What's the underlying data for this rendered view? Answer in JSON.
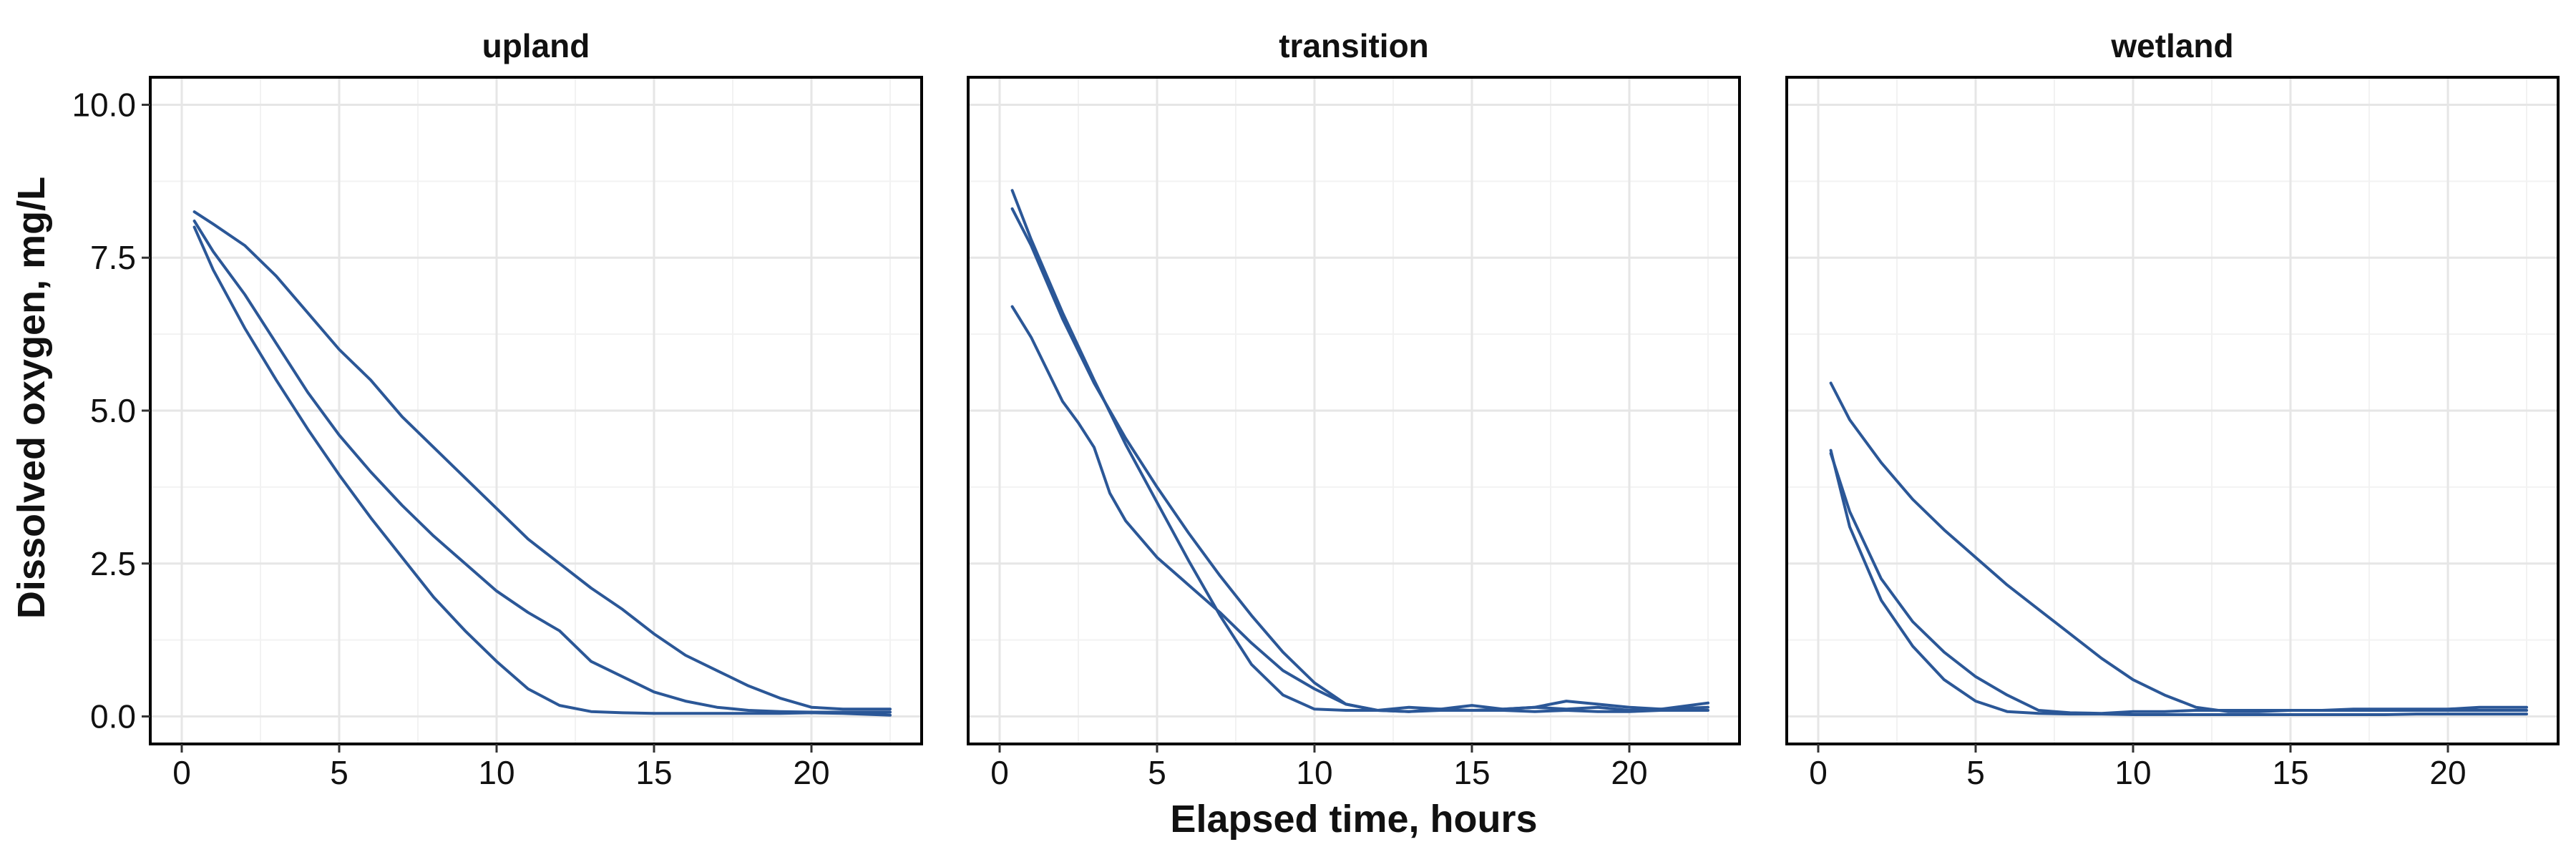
{
  "chart_data": {
    "type": "line",
    "xlabel": "Elapsed time, hours",
    "ylabel": "Dissolved oxygen, mg/L",
    "xlim": [
      -1,
      23.5
    ],
    "ylim": [
      -0.45,
      10.45
    ],
    "x_ticks": [
      0,
      5,
      10,
      15,
      20
    ],
    "x_tick_labels": [
      "0",
      "5",
      "10",
      "15",
      "20"
    ],
    "y_ticks": [
      0,
      2.5,
      5,
      7.5,
      10
    ],
    "y_tick_labels": [
      "0.0",
      "2.5",
      "5.0",
      "7.5",
      "10.0"
    ],
    "grid": true,
    "line_color": "#2b5797",
    "panels": [
      {
        "title": "upland",
        "series": [
          {
            "x": [
              0.4,
              1,
              2,
              3,
              4,
              5,
              6,
              7,
              8,
              9,
              10,
              11,
              12,
              13,
              14,
              15,
              16,
              17,
              18,
              19,
              20,
              21,
              22.5
            ],
            "y": [
              8.25,
              8.05,
              7.7,
              7.2,
              6.6,
              6.0,
              5.5,
              4.9,
              4.4,
              3.9,
              3.4,
              2.9,
              2.5,
              2.1,
              1.75,
              1.35,
              1.0,
              0.75,
              0.5,
              0.3,
              0.15,
              0.12,
              0.12
            ]
          },
          {
            "x": [
              0.4,
              1,
              2,
              3,
              4,
              5,
              6,
              7,
              8,
              9,
              10,
              11,
              12,
              13,
              14,
              15,
              16,
              17,
              18,
              19,
              20,
              21,
              22.5
            ],
            "y": [
              8.1,
              7.6,
              6.9,
              6.1,
              5.3,
              4.6,
              4.0,
              3.45,
              2.95,
              2.5,
              2.05,
              1.7,
              1.4,
              0.9,
              0.65,
              0.4,
              0.25,
              0.15,
              0.1,
              0.08,
              0.07,
              0.07,
              0.07
            ]
          },
          {
            "x": [
              0.4,
              1,
              2,
              3,
              4,
              5,
              6,
              7,
              8,
              9,
              10,
              11,
              12,
              13,
              14,
              15,
              16,
              17,
              18,
              19,
              20,
              21,
              22.5
            ],
            "y": [
              8.0,
              7.3,
              6.35,
              5.5,
              4.7,
              3.95,
              3.25,
              2.6,
              1.95,
              1.4,
              0.9,
              0.45,
              0.18,
              0.08,
              0.06,
              0.05,
              0.05,
              0.05,
              0.05,
              0.05,
              0.06,
              0.05,
              0.02
            ]
          }
        ]
      },
      {
        "title": "transition",
        "series": [
          {
            "x": [
              0.4,
              1,
              2,
              3,
              4,
              5,
              6,
              7,
              8,
              9,
              10,
              11,
              12,
              13,
              14,
              15,
              16,
              17,
              18,
              19,
              20,
              21,
              22.5
            ],
            "y": [
              8.6,
              7.8,
              6.6,
              5.5,
              4.45,
              3.5,
              2.55,
              1.65,
              0.85,
              0.35,
              0.12,
              0.1,
              0.1,
              0.15,
              0.12,
              0.18,
              0.12,
              0.15,
              0.12,
              0.15,
              0.1,
              0.12,
              0.22
            ]
          },
          {
            "x": [
              0.4,
              1,
              2,
              3,
              4,
              5,
              6,
              7,
              8,
              9,
              10,
              11,
              12,
              13,
              14,
              15,
              16,
              17,
              18,
              19,
              20,
              21,
              22.5
            ],
            "y": [
              8.3,
              7.7,
              6.5,
              5.45,
              4.55,
              3.75,
              3.0,
              2.3,
              1.65,
              1.05,
              0.55,
              0.2,
              0.1,
              0.08,
              0.12,
              0.1,
              0.12,
              0.15,
              0.25,
              0.2,
              0.15,
              0.12,
              0.15
            ]
          },
          {
            "x": [
              0.4,
              1,
              2,
              2.5,
              3,
              3.5,
              4,
              5,
              6,
              7,
              8,
              9,
              10,
              11,
              12,
              13,
              14,
              15,
              16,
              17,
              18,
              19,
              20,
              21,
              22.5
            ],
            "y": [
              6.7,
              6.2,
              5.15,
              4.8,
              4.4,
              3.65,
              3.2,
              2.6,
              2.15,
              1.7,
              1.2,
              0.75,
              0.45,
              0.2,
              0.1,
              0.08,
              0.1,
              0.1,
              0.1,
              0.08,
              0.1,
              0.08,
              0.08,
              0.1,
              0.1
            ]
          }
        ]
      },
      {
        "title": "wetland",
        "series": [
          {
            "x": [
              0.4,
              1,
              2,
              3,
              4,
              5,
              6,
              7,
              8,
              9,
              10,
              11,
              12,
              13,
              14,
              15,
              16,
              17,
              18,
              19,
              20,
              21,
              22.5
            ],
            "y": [
              5.45,
              4.85,
              4.15,
              3.55,
              3.05,
              2.6,
              2.15,
              1.75,
              1.35,
              0.95,
              0.6,
              0.35,
              0.15,
              0.08,
              0.08,
              0.1,
              0.1,
              0.12,
              0.12,
              0.12,
              0.12,
              0.15,
              0.15
            ]
          },
          {
            "x": [
              0.4,
              1,
              2,
              3,
              4,
              5,
              6,
              7,
              8,
              9,
              10,
              11,
              12,
              13,
              14,
              15,
              16,
              17,
              18,
              19,
              20,
              21,
              22.5
            ],
            "y": [
              4.3,
              3.35,
              2.25,
              1.55,
              1.05,
              0.65,
              0.35,
              0.1,
              0.06,
              0.05,
              0.08,
              0.08,
              0.1,
              0.1,
              0.1,
              0.1,
              0.1,
              0.1,
              0.1,
              0.1,
              0.1,
              0.1,
              0.1
            ]
          },
          {
            "x": [
              0.4,
              1,
              2,
              3,
              4,
              5,
              6,
              7,
              8,
              9,
              10,
              11,
              12,
              13,
              14,
              15,
              16,
              17,
              18,
              19,
              20,
              21,
              22.5
            ],
            "y": [
              4.35,
              3.1,
              1.9,
              1.15,
              0.6,
              0.25,
              0.08,
              0.05,
              0.04,
              0.04,
              0.03,
              0.03,
              0.03,
              0.03,
              0.03,
              0.03,
              0.03,
              0.03,
              0.03,
              0.04,
              0.04,
              0.04,
              0.04
            ]
          }
        ]
      }
    ]
  }
}
